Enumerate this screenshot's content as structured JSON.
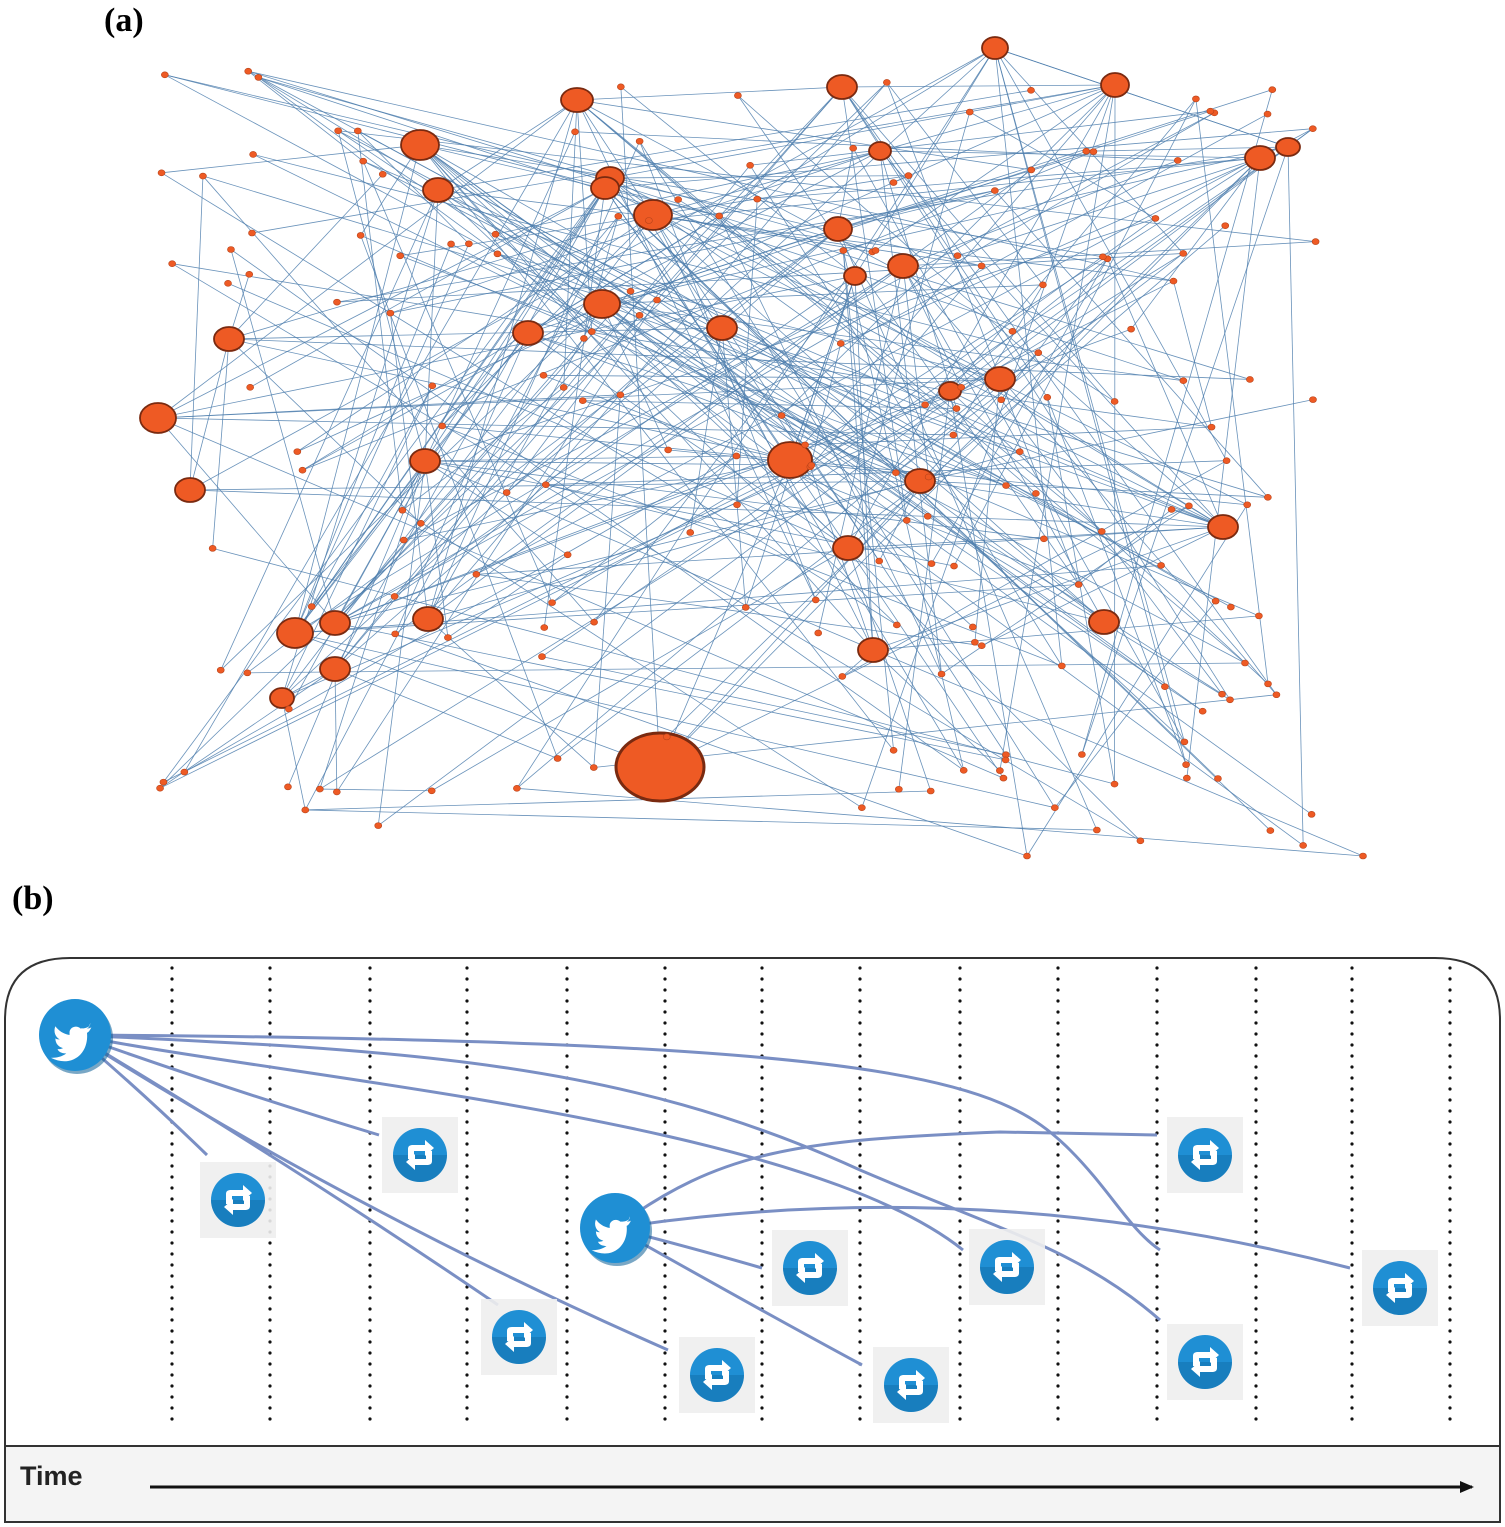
{
  "panels": {
    "a": {
      "label": "(a)"
    },
    "b": {
      "label": "(b)"
    }
  },
  "timeline": {
    "axis_label": "Time",
    "tweet_icon": "twitter-bird-icon",
    "retweet_icon": "retweet-icon"
  },
  "colors": {
    "node_fill": "#ee5a24",
    "node_stroke": "#7a2a10",
    "edge": "#4f7fae",
    "tweet_blue": "#1f8fd4",
    "spread_line": "#7a8fc4",
    "frame": "#333333",
    "axis": "#111111"
  }
}
